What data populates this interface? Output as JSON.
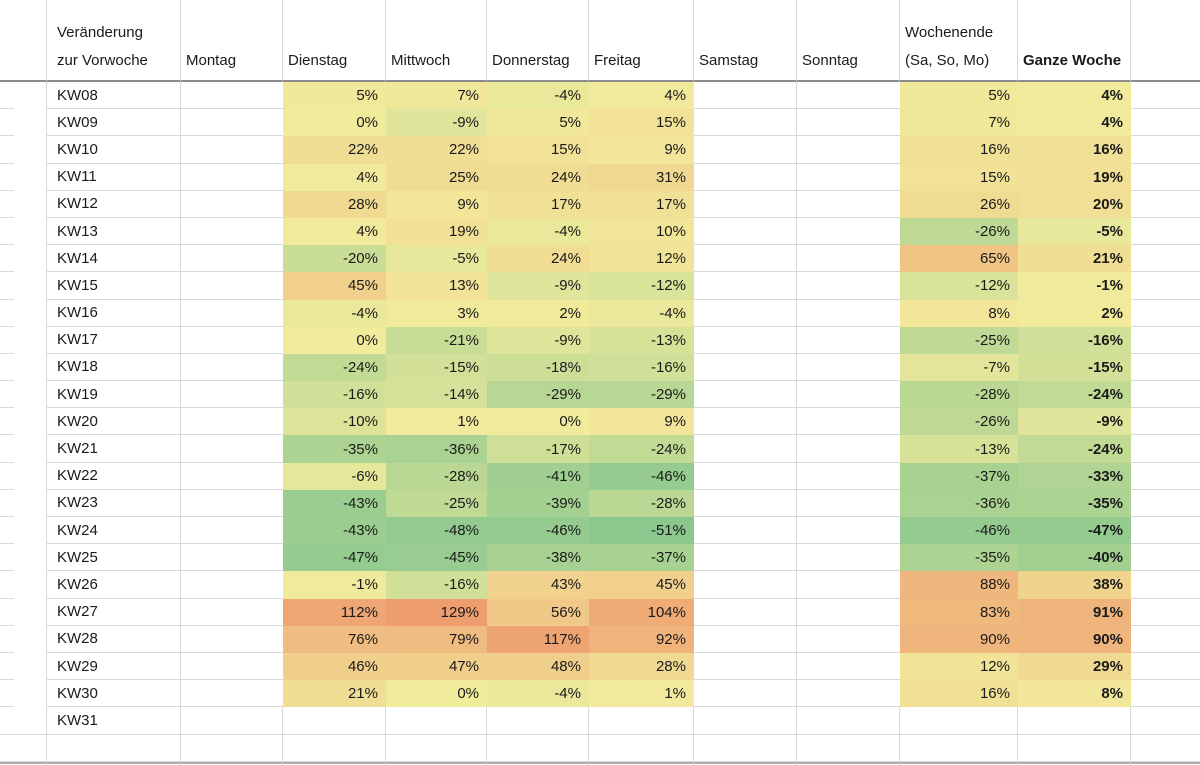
{
  "table": {
    "corner_header": {
      "line1": "Veränderung",
      "line2": "zur Vorwoche"
    },
    "columns": [
      {
        "key": "montag",
        "lines": [
          "Montag"
        ]
      },
      {
        "key": "dienstag",
        "lines": [
          "Dienstag"
        ]
      },
      {
        "key": "mittwoch",
        "lines": [
          "Mittwoch"
        ]
      },
      {
        "key": "donnerstag",
        "lines": [
          "Donnerstag"
        ]
      },
      {
        "key": "freitag",
        "lines": [
          "Freitag"
        ]
      },
      {
        "key": "samstag",
        "lines": [
          "Samstag"
        ]
      },
      {
        "key": "sonntag",
        "lines": [
          "Sonntag"
        ]
      },
      {
        "key": "wochenende",
        "lines": [
          "Wochenende",
          "(Sa, So, Mo)"
        ]
      },
      {
        "key": "ganze_woche",
        "lines": [
          "Ganze Woche"
        ],
        "bold": true
      }
    ],
    "value_suffix": "%",
    "rows": [
      {
        "label": "KW08",
        "values": [
          null,
          5,
          7,
          -4,
          4,
          null,
          null,
          5,
          4
        ]
      },
      {
        "label": "KW09",
        "values": [
          null,
          0,
          -9,
          5,
          15,
          null,
          null,
          7,
          4
        ]
      },
      {
        "label": "KW10",
        "values": [
          null,
          22,
          22,
          15,
          9,
          null,
          null,
          16,
          16
        ]
      },
      {
        "label": "KW11",
        "values": [
          null,
          4,
          25,
          24,
          31,
          null,
          null,
          15,
          19
        ]
      },
      {
        "label": "KW12",
        "values": [
          null,
          28,
          9,
          17,
          17,
          null,
          null,
          26,
          20
        ]
      },
      {
        "label": "KW13",
        "values": [
          null,
          4,
          19,
          -4,
          10,
          null,
          null,
          -26,
          -5
        ]
      },
      {
        "label": "KW14",
        "values": [
          null,
          -20,
          -5,
          24,
          12,
          null,
          null,
          65,
          21
        ]
      },
      {
        "label": "KW15",
        "values": [
          null,
          45,
          13,
          -9,
          -12,
          null,
          null,
          -12,
          -1
        ]
      },
      {
        "label": "KW16",
        "values": [
          null,
          -4,
          3,
          2,
          -4,
          null,
          null,
          8,
          2
        ]
      },
      {
        "label": "KW17",
        "values": [
          null,
          0,
          -21,
          -9,
          -13,
          null,
          null,
          -25,
          -16
        ]
      },
      {
        "label": "KW18",
        "values": [
          null,
          -24,
          -15,
          -18,
          -16,
          null,
          null,
          -7,
          -15
        ]
      },
      {
        "label": "KW19",
        "values": [
          null,
          -16,
          -14,
          -29,
          -29,
          null,
          null,
          -28,
          -24
        ]
      },
      {
        "label": "KW20",
        "values": [
          null,
          -10,
          1,
          0,
          9,
          null,
          null,
          -26,
          -9
        ]
      },
      {
        "label": "KW21",
        "values": [
          null,
          -35,
          -36,
          -17,
          -24,
          null,
          null,
          -13,
          -24
        ]
      },
      {
        "label": "KW22",
        "values": [
          null,
          -6,
          -28,
          -41,
          -46,
          null,
          null,
          -37,
          -33
        ]
      },
      {
        "label": "KW23",
        "values": [
          null,
          -43,
          -25,
          -39,
          -28,
          null,
          null,
          -36,
          -35
        ]
      },
      {
        "label": "KW24",
        "values": [
          null,
          -43,
          -48,
          -46,
          -51,
          null,
          null,
          -46,
          -47
        ]
      },
      {
        "label": "KW25",
        "values": [
          null,
          -47,
          -45,
          -38,
          -37,
          null,
          null,
          -35,
          -40
        ]
      },
      {
        "label": "KW26",
        "values": [
          null,
          -1,
          -16,
          43,
          45,
          null,
          null,
          88,
          38
        ]
      },
      {
        "label": "KW27",
        "values": [
          null,
          112,
          129,
          56,
          104,
          null,
          null,
          83,
          91
        ]
      },
      {
        "label": "KW28",
        "values": [
          null,
          76,
          79,
          117,
          92,
          null,
          null,
          90,
          90
        ]
      },
      {
        "label": "KW29",
        "values": [
          null,
          46,
          47,
          48,
          28,
          null,
          null,
          12,
          29
        ]
      },
      {
        "label": "KW30",
        "values": [
          null,
          21,
          0,
          -4,
          1,
          null,
          null,
          16,
          8
        ]
      },
      {
        "label": "KW31",
        "values": [
          null,
          null,
          null,
          null,
          null,
          null,
          null,
          null,
          null
        ]
      }
    ],
    "trailing_empty_rows": 2
  },
  "color_scale": {
    "min_value": -51,
    "mid_value": 0,
    "max_value": 129,
    "min_color": "#8CC88E",
    "mid_color": "#F1EB9C",
    "max_color": "#EE9D6E"
  }
}
